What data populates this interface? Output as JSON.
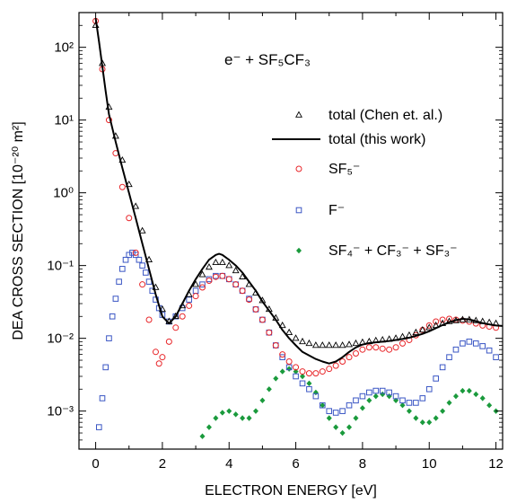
{
  "chart_data": {
    "type": "scatter",
    "title": "",
    "annotation": "e⁻ + SF₅CF₃",
    "xlabel": "ELECTRON ENERGY [eV]",
    "ylabel": "DEA CROSS SECTION  [10⁻²⁰ m²]",
    "xlim": [
      -0.5,
      12.2
    ],
    "ylim": [
      0.0003,
      300
    ],
    "y_scale": "log",
    "grid": false,
    "legend_position": "right",
    "x_ticks": [
      "0",
      "2",
      "4",
      "6",
      "8",
      "10",
      "12"
    ],
    "y_ticks": [
      "10²",
      "10¹",
      "10⁰",
      "10⁻¹",
      "10⁻²",
      "10⁻³"
    ],
    "colors": {
      "chen": "#000000",
      "thiswork": "#000000",
      "sf5": "#e8262a",
      "f": "#3a56c4",
      "sum": "#1a9a3c"
    },
    "series": [
      {
        "name": "total (Chen et. al.)",
        "marker": "triangle-open",
        "points": [
          [
            0.0,
            200
          ],
          [
            0.2,
            60
          ],
          [
            0.4,
            15
          ],
          [
            0.6,
            6
          ],
          [
            0.8,
            2.8
          ],
          [
            1.0,
            1.3
          ],
          [
            1.2,
            0.65
          ],
          [
            1.4,
            0.3
          ],
          [
            1.6,
            0.12
          ],
          [
            1.8,
            0.05
          ],
          [
            2.0,
            0.025
          ],
          [
            2.2,
            0.017
          ],
          [
            2.4,
            0.02
          ],
          [
            2.6,
            0.028
          ],
          [
            2.8,
            0.04
          ],
          [
            3.0,
            0.055
          ],
          [
            3.2,
            0.075
          ],
          [
            3.4,
            0.095
          ],
          [
            3.6,
            0.11
          ],
          [
            3.8,
            0.11
          ],
          [
            4.0,
            0.1
          ],
          [
            4.2,
            0.085
          ],
          [
            4.4,
            0.07
          ],
          [
            4.6,
            0.055
          ],
          [
            4.8,
            0.042
          ],
          [
            5.0,
            0.033
          ],
          [
            5.2,
            0.025
          ],
          [
            5.4,
            0.019
          ],
          [
            5.6,
            0.015
          ],
          [
            5.8,
            0.012
          ],
          [
            6.0,
            0.01
          ],
          [
            6.2,
            0.009
          ],
          [
            6.4,
            0.0085
          ],
          [
            6.6,
            0.008
          ],
          [
            6.8,
            0.008
          ],
          [
            7.0,
            0.008
          ],
          [
            7.2,
            0.008
          ],
          [
            7.4,
            0.008
          ],
          [
            7.6,
            0.0082
          ],
          [
            7.8,
            0.0085
          ],
          [
            8.0,
            0.0088
          ],
          [
            8.2,
            0.009
          ],
          [
            8.4,
            0.0093
          ],
          [
            8.6,
            0.0095
          ],
          [
            8.8,
            0.0097
          ],
          [
            9.0,
            0.01
          ],
          [
            9.2,
            0.0105
          ],
          [
            9.4,
            0.011
          ],
          [
            9.6,
            0.012
          ],
          [
            9.8,
            0.013
          ],
          [
            10.0,
            0.014
          ],
          [
            10.2,
            0.015
          ],
          [
            10.4,
            0.016
          ],
          [
            10.6,
            0.017
          ],
          [
            10.8,
            0.0175
          ],
          [
            11.0,
            0.018
          ],
          [
            11.2,
            0.018
          ],
          [
            11.4,
            0.0175
          ],
          [
            11.6,
            0.017
          ],
          [
            11.8,
            0.0165
          ],
          [
            12.0,
            0.016
          ]
        ]
      },
      {
        "name": "total (this work)",
        "marker": "line",
        "points": [
          [
            0.0,
            250
          ],
          [
            0.1,
            120
          ],
          [
            0.2,
            55
          ],
          [
            0.3,
            25
          ],
          [
            0.4,
            12
          ],
          [
            0.6,
            5
          ],
          [
            0.8,
            2.2
          ],
          [
            1.0,
            1.0
          ],
          [
            1.2,
            0.45
          ],
          [
            1.4,
            0.2
          ],
          [
            1.6,
            0.09
          ],
          [
            1.8,
            0.04
          ],
          [
            2.0,
            0.02
          ],
          [
            2.2,
            0.016
          ],
          [
            2.4,
            0.02
          ],
          [
            2.6,
            0.03
          ],
          [
            2.8,
            0.045
          ],
          [
            3.0,
            0.065
          ],
          [
            3.2,
            0.09
          ],
          [
            3.4,
            0.12
          ],
          [
            3.6,
            0.14
          ],
          [
            3.7,
            0.145
          ],
          [
            3.8,
            0.14
          ],
          [
            4.0,
            0.12
          ],
          [
            4.2,
            0.1
          ],
          [
            4.4,
            0.08
          ],
          [
            4.6,
            0.06
          ],
          [
            4.8,
            0.045
          ],
          [
            5.0,
            0.032
          ],
          [
            5.2,
            0.024
          ],
          [
            5.4,
            0.018
          ],
          [
            5.6,
            0.013
          ],
          [
            5.8,
            0.01
          ],
          [
            6.0,
            0.008
          ],
          [
            6.2,
            0.0065
          ],
          [
            6.4,
            0.0058
          ],
          [
            6.6,
            0.0052
          ],
          [
            6.8,
            0.0048
          ],
          [
            7.0,
            0.0045
          ],
          [
            7.2,
            0.0048
          ],
          [
            7.4,
            0.0055
          ],
          [
            7.6,
            0.0065
          ],
          [
            7.8,
            0.0075
          ],
          [
            8.0,
            0.0082
          ],
          [
            8.2,
            0.0086
          ],
          [
            8.4,
            0.0088
          ],
          [
            8.6,
            0.009
          ],
          [
            8.8,
            0.0092
          ],
          [
            9.0,
            0.0095
          ],
          [
            9.2,
            0.0098
          ],
          [
            9.4,
            0.0102
          ],
          [
            9.6,
            0.0108
          ],
          [
            9.8,
            0.0115
          ],
          [
            10.0,
            0.0125
          ],
          [
            10.2,
            0.0138
          ],
          [
            10.4,
            0.0152
          ],
          [
            10.6,
            0.0166
          ],
          [
            10.8,
            0.0178
          ],
          [
            11.0,
            0.0185
          ],
          [
            11.2,
            0.0182
          ],
          [
            11.4,
            0.0172
          ],
          [
            11.6,
            0.0162
          ],
          [
            11.8,
            0.0155
          ],
          [
            12.0,
            0.015
          ],
          [
            12.2,
            0.0148
          ]
        ]
      },
      {
        "name": "SF₅⁻",
        "marker": "circle-open",
        "points": [
          [
            0.0,
            230
          ],
          [
            0.2,
            50
          ],
          [
            0.4,
            10
          ],
          [
            0.6,
            3.5
          ],
          [
            0.8,
            1.2
          ],
          [
            1.0,
            0.45
          ],
          [
            1.2,
            0.15
          ],
          [
            1.4,
            0.055
          ],
          [
            1.6,
            0.018
          ],
          [
            1.8,
            0.0065
          ],
          [
            1.9,
            0.0045
          ],
          [
            2.0,
            0.0055
          ],
          [
            2.2,
            0.009
          ],
          [
            2.4,
            0.014
          ],
          [
            2.6,
            0.02
          ],
          [
            2.8,
            0.028
          ],
          [
            3.0,
            0.038
          ],
          [
            3.2,
            0.05
          ],
          [
            3.4,
            0.062
          ],
          [
            3.6,
            0.07
          ],
          [
            3.8,
            0.072
          ],
          [
            4.0,
            0.065
          ],
          [
            4.2,
            0.055
          ],
          [
            4.4,
            0.045
          ],
          [
            4.6,
            0.034
          ],
          [
            4.8,
            0.025
          ],
          [
            5.0,
            0.018
          ],
          [
            5.2,
            0.012
          ],
          [
            5.4,
            0.008
          ],
          [
            5.6,
            0.006
          ],
          [
            5.8,
            0.0048
          ],
          [
            6.0,
            0.004
          ],
          [
            6.2,
            0.0035
          ],
          [
            6.4,
            0.0033
          ],
          [
            6.6,
            0.0033
          ],
          [
            6.8,
            0.0035
          ],
          [
            7.0,
            0.0038
          ],
          [
            7.2,
            0.0042
          ],
          [
            7.4,
            0.0048
          ],
          [
            7.6,
            0.0055
          ],
          [
            7.8,
            0.0062
          ],
          [
            8.0,
            0.007
          ],
          [
            8.2,
            0.0075
          ],
          [
            8.4,
            0.0075
          ],
          [
            8.6,
            0.0072
          ],
          [
            8.8,
            0.007
          ],
          [
            9.0,
            0.0075
          ],
          [
            9.2,
            0.0085
          ],
          [
            9.4,
            0.0095
          ],
          [
            9.6,
            0.011
          ],
          [
            9.8,
            0.013
          ],
          [
            10.0,
            0.015
          ],
          [
            10.2,
            0.017
          ],
          [
            10.4,
            0.018
          ],
          [
            10.6,
            0.0185
          ],
          [
            10.8,
            0.018
          ],
          [
            11.0,
            0.0175
          ],
          [
            11.2,
            0.017
          ],
          [
            11.4,
            0.016
          ],
          [
            11.6,
            0.015
          ],
          [
            11.8,
            0.0145
          ],
          [
            12.0,
            0.014
          ]
        ]
      },
      {
        "name": "F⁻",
        "marker": "square-open",
        "points": [
          [
            0.1,
            0.0006
          ],
          [
            0.2,
            0.0015
          ],
          [
            0.3,
            0.004
          ],
          [
            0.4,
            0.01
          ],
          [
            0.5,
            0.02
          ],
          [
            0.6,
            0.035
          ],
          [
            0.7,
            0.06
          ],
          [
            0.8,
            0.09
          ],
          [
            0.9,
            0.12
          ],
          [
            1.0,
            0.14
          ],
          [
            1.1,
            0.15
          ],
          [
            1.2,
            0.14
          ],
          [
            1.3,
            0.12
          ],
          [
            1.4,
            0.1
          ],
          [
            1.5,
            0.08
          ],
          [
            1.6,
            0.06
          ],
          [
            1.7,
            0.045
          ],
          [
            1.8,
            0.034
          ],
          [
            1.9,
            0.026
          ],
          [
            2.0,
            0.021
          ],
          [
            2.2,
            0.017
          ],
          [
            2.4,
            0.02
          ],
          [
            2.6,
            0.026
          ],
          [
            2.8,
            0.034
          ],
          [
            3.0,
            0.045
          ],
          [
            3.2,
            0.055
          ],
          [
            3.4,
            0.065
          ],
          [
            3.6,
            0.072
          ],
          [
            3.8,
            0.072
          ],
          [
            4.0,
            0.065
          ],
          [
            4.2,
            0.055
          ],
          [
            4.4,
            0.045
          ],
          [
            4.6,
            0.035
          ],
          [
            4.8,
            0.025
          ],
          [
            5.0,
            0.018
          ],
          [
            5.2,
            0.012
          ],
          [
            5.4,
            0.008
          ],
          [
            5.6,
            0.0055
          ],
          [
            5.8,
            0.004
          ],
          [
            6.0,
            0.003
          ],
          [
            6.2,
            0.0024
          ],
          [
            6.4,
            0.002
          ],
          [
            6.6,
            0.0016
          ],
          [
            6.8,
            0.0012
          ],
          [
            7.0,
            0.001
          ],
          [
            7.2,
            0.00095
          ],
          [
            7.4,
            0.001
          ],
          [
            7.6,
            0.0012
          ],
          [
            7.8,
            0.0014
          ],
          [
            8.0,
            0.0016
          ],
          [
            8.2,
            0.0018
          ],
          [
            8.4,
            0.0019
          ],
          [
            8.6,
            0.0019
          ],
          [
            8.8,
            0.0018
          ],
          [
            9.0,
            0.0016
          ],
          [
            9.2,
            0.0014
          ],
          [
            9.4,
            0.0013
          ],
          [
            9.6,
            0.0013
          ],
          [
            9.8,
            0.0015
          ],
          [
            10.0,
            0.002
          ],
          [
            10.2,
            0.0028
          ],
          [
            10.4,
            0.004
          ],
          [
            10.6,
            0.0055
          ],
          [
            10.8,
            0.007
          ],
          [
            11.0,
            0.0085
          ],
          [
            11.2,
            0.009
          ],
          [
            11.4,
            0.0085
          ],
          [
            11.6,
            0.0078
          ],
          [
            11.8,
            0.0068
          ],
          [
            12.0,
            0.0055
          ]
        ]
      },
      {
        "name": "SF₄⁻ + CF₃⁻ + SF₃⁻",
        "marker": "diamond-filled",
        "points": [
          [
            3.2,
            0.00045
          ],
          [
            3.4,
            0.0006
          ],
          [
            3.6,
            0.0008
          ],
          [
            3.8,
            0.00095
          ],
          [
            4.0,
            0.001
          ],
          [
            4.2,
            0.0009
          ],
          [
            4.4,
            0.0008
          ],
          [
            4.6,
            0.0008
          ],
          [
            4.8,
            0.001
          ],
          [
            5.0,
            0.0014
          ],
          [
            5.2,
            0.002
          ],
          [
            5.4,
            0.0028
          ],
          [
            5.6,
            0.0035
          ],
          [
            5.8,
            0.0038
          ],
          [
            6.0,
            0.0035
          ],
          [
            6.2,
            0.003
          ],
          [
            6.4,
            0.0024
          ],
          [
            6.6,
            0.0018
          ],
          [
            6.8,
            0.0012
          ],
          [
            7.0,
            0.0008
          ],
          [
            7.2,
            0.0006
          ],
          [
            7.4,
            0.0005
          ],
          [
            7.6,
            0.0006
          ],
          [
            7.8,
            0.0008
          ],
          [
            8.0,
            0.0011
          ],
          [
            8.2,
            0.0014
          ],
          [
            8.4,
            0.0016
          ],
          [
            8.6,
            0.0017
          ],
          [
            8.8,
            0.0016
          ],
          [
            9.0,
            0.0014
          ],
          [
            9.2,
            0.0012
          ],
          [
            9.4,
            0.001
          ],
          [
            9.6,
            0.0008
          ],
          [
            9.8,
            0.0007
          ],
          [
            10.0,
            0.0007
          ],
          [
            10.2,
            0.0008
          ],
          [
            10.4,
            0.001
          ],
          [
            10.6,
            0.0013
          ],
          [
            10.8,
            0.0016
          ],
          [
            11.0,
            0.0019
          ],
          [
            11.2,
            0.0019
          ],
          [
            11.4,
            0.0017
          ],
          [
            11.6,
            0.0015
          ],
          [
            11.8,
            0.0012
          ],
          [
            12.0,
            0.001
          ]
        ]
      }
    ]
  }
}
